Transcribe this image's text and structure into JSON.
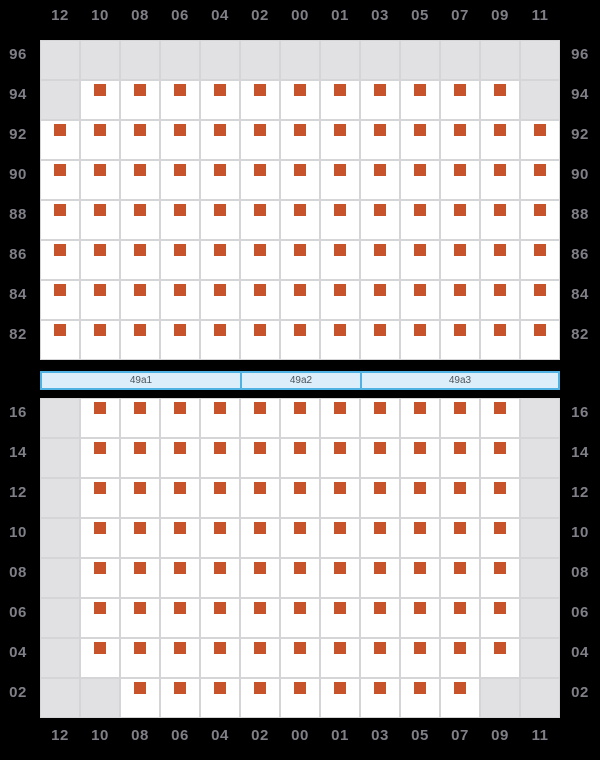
{
  "columns": [
    "12",
    "10",
    "08",
    "06",
    "04",
    "02",
    "00",
    "01",
    "03",
    "05",
    "07",
    "09",
    "11"
  ],
  "top_panel": {
    "tiers": [
      "96",
      "94",
      "92",
      "90",
      "88",
      "86",
      "84",
      "82"
    ],
    "occupancy": [
      "0000000000000",
      "0111111111110",
      "1111111111111",
      "1111111111111",
      "1111111111111",
      "1111111111111",
      "1111111111111",
      "1111111111111"
    ]
  },
  "bottom_panel": {
    "tiers": [
      "16",
      "14",
      "12",
      "10",
      "08",
      "06",
      "04",
      "02"
    ],
    "occupancy": [
      "0111111111110",
      "0111111111110",
      "0111111111110",
      "0111111111110",
      "0111111111110",
      "0111111111110",
      "0111111111110",
      "0011111111100"
    ]
  },
  "hatch_bar": {
    "segments": [
      {
        "label": "49a1",
        "columns": 5
      },
      {
        "label": "49a2",
        "columns": 3
      },
      {
        "label": "49a3",
        "columns": 5
      }
    ]
  },
  "colors": {
    "background": "#000000",
    "label_text": "#7f7f88",
    "grid_line": "#d5d5d8",
    "cell_occupied_bg": "#ffffff",
    "cell_empty_bg": "#e1e1e3",
    "marker": "#c65329",
    "hatch_fill": "#dceef9",
    "hatch_border": "#50b2e2",
    "hatch_text": "#4f545a"
  }
}
